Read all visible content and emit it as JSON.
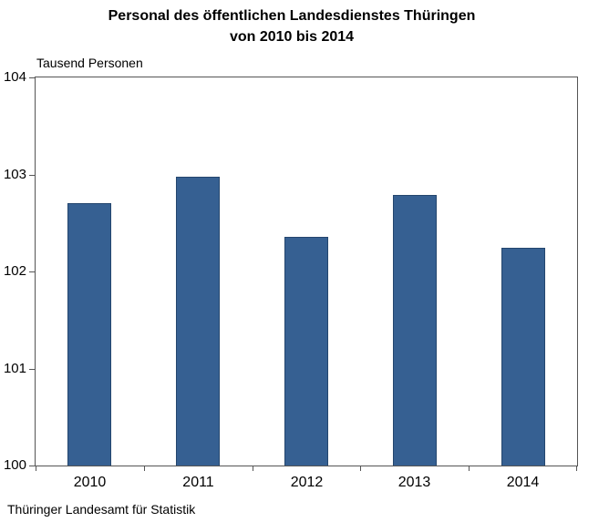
{
  "title": {
    "line1": "Personal des öffentlichen Landesdienstes Thüringen",
    "line2": "von 2010 bis 2014"
  },
  "source": "Thüringer Landesamt für Statistik",
  "colors": {
    "bar_fill": "#366092",
    "bar_border": "#24466e",
    "axis": "#555555",
    "text": "#000000",
    "background": "#ffffff"
  },
  "chart_data": {
    "type": "bar",
    "title": "Personal des öffentlichen Landesdienstes Thüringen von 2010 bis 2014",
    "xlabel": "",
    "ylabel": "Tausend Personen",
    "categories": [
      "2010",
      "2011",
      "2012",
      "2013",
      "2014"
    ],
    "values": [
      102.7,
      102.98,
      102.36,
      102.79,
      102.24
    ],
    "ylim": [
      100,
      104
    ],
    "yticks": [
      100,
      101,
      102,
      103,
      104
    ],
    "grid": false,
    "legend": null,
    "source": "Thüringer Landesamt für Statistik"
  }
}
